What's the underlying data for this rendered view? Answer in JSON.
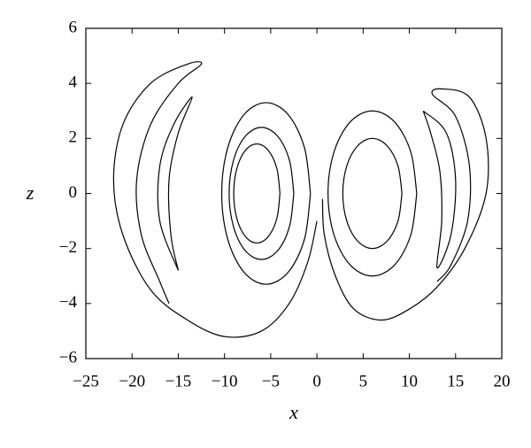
{
  "chart_data": {
    "type": "line",
    "xlabel": "x",
    "ylabel": "z",
    "color": "#000000",
    "xlim": [
      -25,
      20
    ],
    "xticks": [
      {
        "value": -25,
        "label": "−25"
      },
      {
        "value": -20,
        "label": "−20"
      },
      {
        "value": -15,
        "label": "−15"
      },
      {
        "value": -10,
        "label": "−10"
      },
      {
        "value": -5,
        "label": "−5"
      },
      0,
      5,
      10,
      15,
      20
    ],
    "ylim": [
      -6,
      6
    ],
    "yticks": [
      {
        "value": -6,
        "label": "−6"
      },
      {
        "value": -4,
        "label": "−4"
      },
      {
        "value": -2,
        "label": "−2"
      },
      0,
      2,
      4,
      6
    ],
    "series": [
      {
        "x": [
          0,
          -1,
          -3,
          -6,
          -10,
          -14,
          -18,
          -21,
          -22,
          -21,
          -18,
          -14,
          -12.5,
          -15,
          -18,
          -19.5,
          -19,
          -17,
          -16
        ],
        "y": [
          -1,
          -2.5,
          -4,
          -5,
          -5.2,
          -4.6,
          -3.5,
          -1.5,
          0.5,
          2.5,
          4,
          4.7,
          4.7,
          4,
          2.5,
          0.5,
          -1.5,
          -3.2,
          -4
        ]
      },
      {
        "x": [
          -15,
          -17,
          -17,
          -15.5,
          -13.5,
          -15,
          -16,
          -15.8,
          -15
        ],
        "y": [
          -2.8,
          -1,
          1,
          2.5,
          3.5,
          2.2,
          0.5,
          -1.5,
          -2.8
        ]
      },
      {
        "x": [
          -0.7,
          -1.34,
          -3.1,
          -5.5,
          -7.9,
          -9.66,
          -10.3,
          -9.66,
          -7.9,
          -5.5,
          -3.1,
          -1.34,
          -0.7
        ],
        "y": [
          0,
          1.65,
          2.86,
          3.3,
          2.86,
          1.65,
          0,
          -1.65,
          -2.86,
          -3.3,
          -2.86,
          -1.65,
          0
        ]
      },
      {
        "x": [
          -2.5,
          -2.97,
          -4.25,
          -6,
          -7.75,
          -9.03,
          -9.5,
          -9.03,
          -7.75,
          -6,
          -4.25,
          -2.97,
          -2.5
        ],
        "y": [
          0,
          1.2,
          2.08,
          2.4,
          2.08,
          1.2,
          0,
          -1.2,
          -2.08,
          -2.4,
          -2.08,
          -1.2,
          0
        ]
      },
      {
        "x": [
          -4,
          -4.33,
          -5.25,
          -6.5,
          -7.75,
          -8.67,
          -9,
          -8.67,
          -7.75,
          -6.5,
          -5.25,
          -4.33,
          -4
        ],
        "y": [
          0,
          0.9,
          1.56,
          1.8,
          1.56,
          0.9,
          0,
          -0.9,
          -1.56,
          -1.8,
          -1.56,
          -0.9,
          0
        ]
      },
      {
        "x": [
          10.8,
          10.16,
          8.4,
          6,
          3.6,
          1.84,
          1.2,
          1.84,
          3.6,
          6,
          8.4,
          10.16,
          10.8
        ],
        "y": [
          0,
          1.5,
          2.6,
          3,
          2.6,
          1.5,
          0,
          -1.5,
          -2.6,
          -3,
          -2.6,
          -1.5,
          0
        ]
      },
      {
        "x": [
          9.2,
          8.77,
          7.6,
          6,
          4.4,
          3.23,
          2.8,
          3.23,
          4.4,
          6,
          7.6,
          8.77,
          9.2
        ],
        "y": [
          0,
          1,
          1.73,
          2,
          1.73,
          1,
          0,
          -1,
          -1.73,
          -2,
          -1.73,
          -1,
          0
        ]
      },
      {
        "x": [
          0.6,
          0.8,
          2,
          4,
          7,
          10,
          13,
          16,
          18.3,
          18.3,
          16.5,
          13.5,
          12.5,
          15,
          16.5,
          16.3,
          14.5,
          13
        ],
        "y": [
          -0.2,
          -1.5,
          -3,
          -4.2,
          -4.6,
          -4.2,
          -3.4,
          -2,
          0,
          2,
          3.5,
          3.8,
          3.6,
          2.8,
          1,
          -1,
          -2.6,
          -3.2
        ]
      },
      {
        "x": [
          11.5,
          14,
          15,
          14.5,
          13,
          13.5,
          13.3,
          12.3,
          11.5
        ],
        "y": [
          3,
          2.2,
          0.5,
          -1.5,
          -2.7,
          -1,
          0.8,
          2.2,
          3
        ]
      }
    ]
  }
}
